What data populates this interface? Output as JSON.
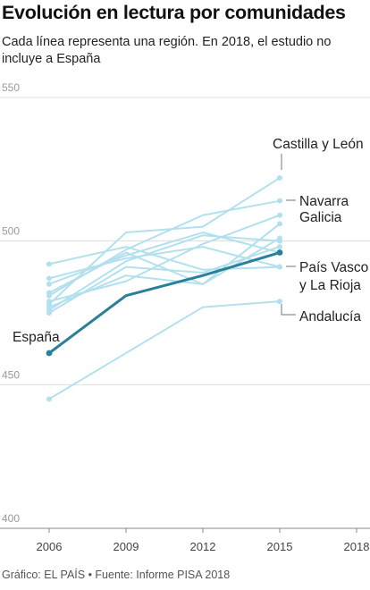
{
  "title": "Evolución en lectura por comunidades",
  "subtitle": "Cada línea representa una región. En 2018, el estudio no incluye a España",
  "footer": "Gráfico: EL PAÍS • Fuente: Informe PISA 2018",
  "colors": {
    "highlight": "#2a7f99",
    "regions": "#b3e0ee",
    "grid": "#dddddd",
    "axis": "#666666"
  },
  "chart_data": {
    "type": "line",
    "title": "Evolución en lectura por comunidades",
    "x": [
      2006,
      2009,
      2012,
      2015
    ],
    "xticks": [
      "2006",
      "2009",
      "2012",
      "2015",
      "2018"
    ],
    "xlim": [
      2006,
      2018
    ],
    "yticks": [
      "550",
      "500",
      "450",
      "400"
    ],
    "ylim": [
      400,
      550
    ],
    "grid": true,
    "series": [
      {
        "name": "España",
        "highlight": true,
        "values": [
          461,
          481,
          488,
          496
        ]
      },
      {
        "name": "Castilla y León",
        "values": [
          478,
          503,
          505,
          522
        ]
      },
      {
        "name": "Navarra",
        "values": [
          481,
          497,
          509,
          514
        ]
      },
      {
        "name": "Galicia",
        "values": [
          479,
          486,
          499,
          509
        ]
      },
      {
        "name": "País Vasco",
        "values": [
          487,
          494,
          498,
          491
        ]
      },
      {
        "name": "La Rioja",
        "values": [
          492,
          498,
          490,
          491
        ]
      },
      {
        "name": "Andalucía",
        "values": [
          445,
          null,
          477,
          479
        ]
      },
      {
        "values": [
          476,
          493,
          502,
          500
        ]
      },
      {
        "values": [
          482,
          496,
          485,
          506
        ]
      },
      {
        "values": [
          475,
          491,
          489,
          498
        ]
      },
      {
        "values": [
          477,
          488,
          485,
          501
        ]
      },
      {
        "values": [
          485,
          495,
          503,
          496
        ]
      }
    ],
    "annotations": [
      {
        "text": "Castilla y León",
        "series": "Castilla y León"
      },
      {
        "text": "Navarra",
        "series": "Navarra"
      },
      {
        "text": "Galicia",
        "series": "Galicia"
      },
      {
        "text": "País Vasco",
        "series": "País Vasco"
      },
      {
        "text": "y La Rioja",
        "series": "La Rioja"
      },
      {
        "text": "Andalucía",
        "series": "Andalucía"
      },
      {
        "text": "España",
        "series": "España"
      }
    ]
  }
}
